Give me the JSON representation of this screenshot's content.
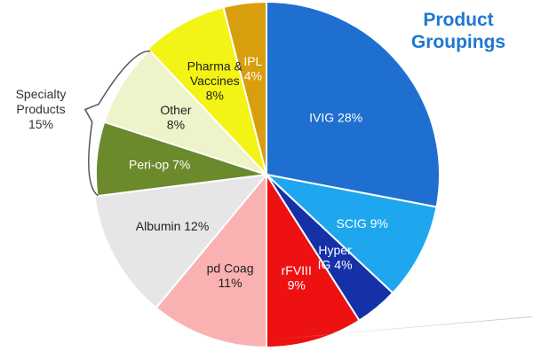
{
  "title": {
    "line1": "Product",
    "line2": "Groupings"
  },
  "group_label": {
    "line1": "Specialty",
    "line2": "Products",
    "line3": "15%"
  },
  "chart_data": {
    "type": "pie",
    "title": "Product Groupings",
    "slices": [
      {
        "lines": [
          "IVIG 28%"
        ],
        "label": "IVIG",
        "value": 28,
        "color": "#1f6fd0",
        "text_color": "#ffffff"
      },
      {
        "lines": [
          "SCIG 9%"
        ],
        "label": "SCIG",
        "value": 9,
        "color": "#1ea7ee",
        "text_color": "#ffffff"
      },
      {
        "lines": [
          "Hyper",
          "IG 4%"
        ],
        "label": "Hyper IG",
        "value": 4,
        "color": "#1531a8",
        "text_color": "#ffffff"
      },
      {
        "lines": [
          "rFVIII",
          "9%"
        ],
        "label": "rFVIII",
        "value": 9,
        "color": "#ee1111",
        "text_color": "#ffffff"
      },
      {
        "lines": [
          "pd Coag",
          "11%"
        ],
        "label": "pd Coag",
        "value": 11,
        "color": "#f9b1b1",
        "text_color": "#222222"
      },
      {
        "lines": [
          "Albumin 12%"
        ],
        "label": "Albumin",
        "value": 12,
        "color": "#e6e6e6",
        "text_color": "#222222"
      },
      {
        "lines": [
          "Peri-op 7%"
        ],
        "label": "Peri-op",
        "value": 7,
        "color": "#6b8a2c",
        "text_color": "#ffffff"
      },
      {
        "lines": [
          "Other",
          "8%"
        ],
        "label": "Other",
        "value": 8,
        "color": "#eef3c9",
        "text_color": "#222222"
      },
      {
        "lines": [
          "Pharma &",
          "Vaccines",
          "8%"
        ],
        "label": "Pharma & Vaccines",
        "value": 8,
        "color": "#f3f315",
        "text_color": "#222222"
      },
      {
        "lines": [
          "IPL",
          "4%"
        ],
        "label": "IPL",
        "value": 4,
        "color": "#d89e0e",
        "text_color": "#ffffff"
      }
    ],
    "group_bracket": {
      "label": "Specialty Products 15%",
      "members": [
        "Peri-op",
        "Other"
      ]
    }
  }
}
